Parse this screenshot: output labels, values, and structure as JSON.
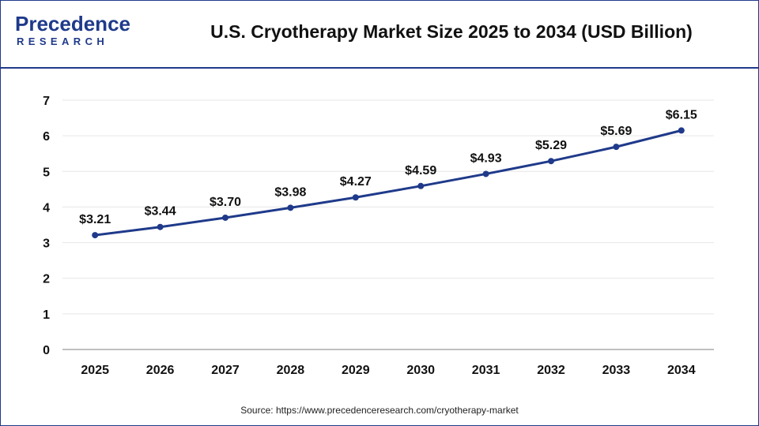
{
  "brand": {
    "logo_line1": "Precedence",
    "logo_line2": "RESEARCH"
  },
  "colors": {
    "accent": "#1f3a8a",
    "line": "#1f3a8a",
    "grid": "#e6e6e6"
  },
  "source_text": "Source: https://www.precedenceresearch.com/cryotherapy-market",
  "chart_data": {
    "type": "line",
    "title": "U.S. Cryotherapy Market Size 2025 to 2034 (USD Billion)",
    "xlabel": "",
    "ylabel": "",
    "categories": [
      "2025",
      "2026",
      "2027",
      "2028",
      "2029",
      "2030",
      "2031",
      "2032",
      "2033",
      "2034"
    ],
    "values": [
      3.21,
      3.44,
      3.7,
      3.98,
      4.27,
      4.59,
      4.93,
      5.29,
      5.69,
      6.15
    ],
    "data_labels": [
      "$3.21",
      "$3.44",
      "$3.70",
      "$3.98",
      "$4.27",
      "$4.59",
      "$4.93",
      "$5.29",
      "$5.69",
      "$6.15"
    ],
    "ylim": [
      0,
      7
    ],
    "yticks": [
      "0",
      "1",
      "2",
      "3",
      "4",
      "5",
      "6",
      "7"
    ],
    "grid": true,
    "legend": "none"
  }
}
